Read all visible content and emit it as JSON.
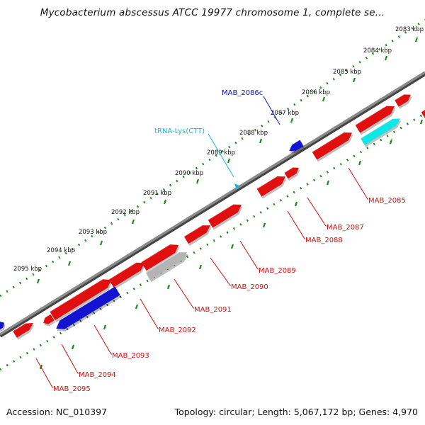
{
  "title": "Mycobacterium abscessus ATCC 19977 chromosome 1, complete se...",
  "footer": {
    "accession": "Accession: NC_010397",
    "summary": "Topology: circular; Length: 5,067,172 bp; Genes: 4,970"
  },
  "colors": {
    "forward_gene": "#e01010",
    "reverse_gene": "#1414d0",
    "pseudo_gene": "#b4b4b4",
    "rna_gene": "#10e6e6",
    "label_red": "#d01010",
    "label_blue": "#1010c0",
    "label_cyan": "#18b8d8",
    "backbone": "#7a7a7a",
    "scale_dots": "#1f8a1f"
  },
  "scale": {
    "unit": "kbp",
    "labels": [
      "2083 kbp",
      "2084 kbp",
      "2085 kbp",
      "2086 kbp",
      "2087 kbp",
      "2088 kbp",
      "2089 kbp",
      "2090 kbp",
      "2091 kbp",
      "2092 kbp",
      "2093 kbp",
      "2094 kbp",
      "2095 kbp"
    ]
  },
  "features": {
    "labels": [
      {
        "text": "MAB_2085",
        "color": "label_red"
      },
      {
        "text": "MAB_2087",
        "color": "label_red"
      },
      {
        "text": "MAB_2088",
        "color": "label_red"
      },
      {
        "text": "MAB_2089",
        "color": "label_red"
      },
      {
        "text": "MAB_2090",
        "color": "label_red"
      },
      {
        "text": "MAB_2091",
        "color": "label_red"
      },
      {
        "text": "MAB_2092",
        "color": "label_red"
      },
      {
        "text": "MAB_2093",
        "color": "label_red"
      },
      {
        "text": "MAB_2094",
        "color": "label_red"
      },
      {
        "text": "MAB_2095",
        "color": "label_red"
      },
      {
        "text": "MAB_2086c",
        "color": "label_blue"
      },
      {
        "text": "tRNA-Lys(CTT)",
        "color": "label_cyan"
      }
    ]
  }
}
